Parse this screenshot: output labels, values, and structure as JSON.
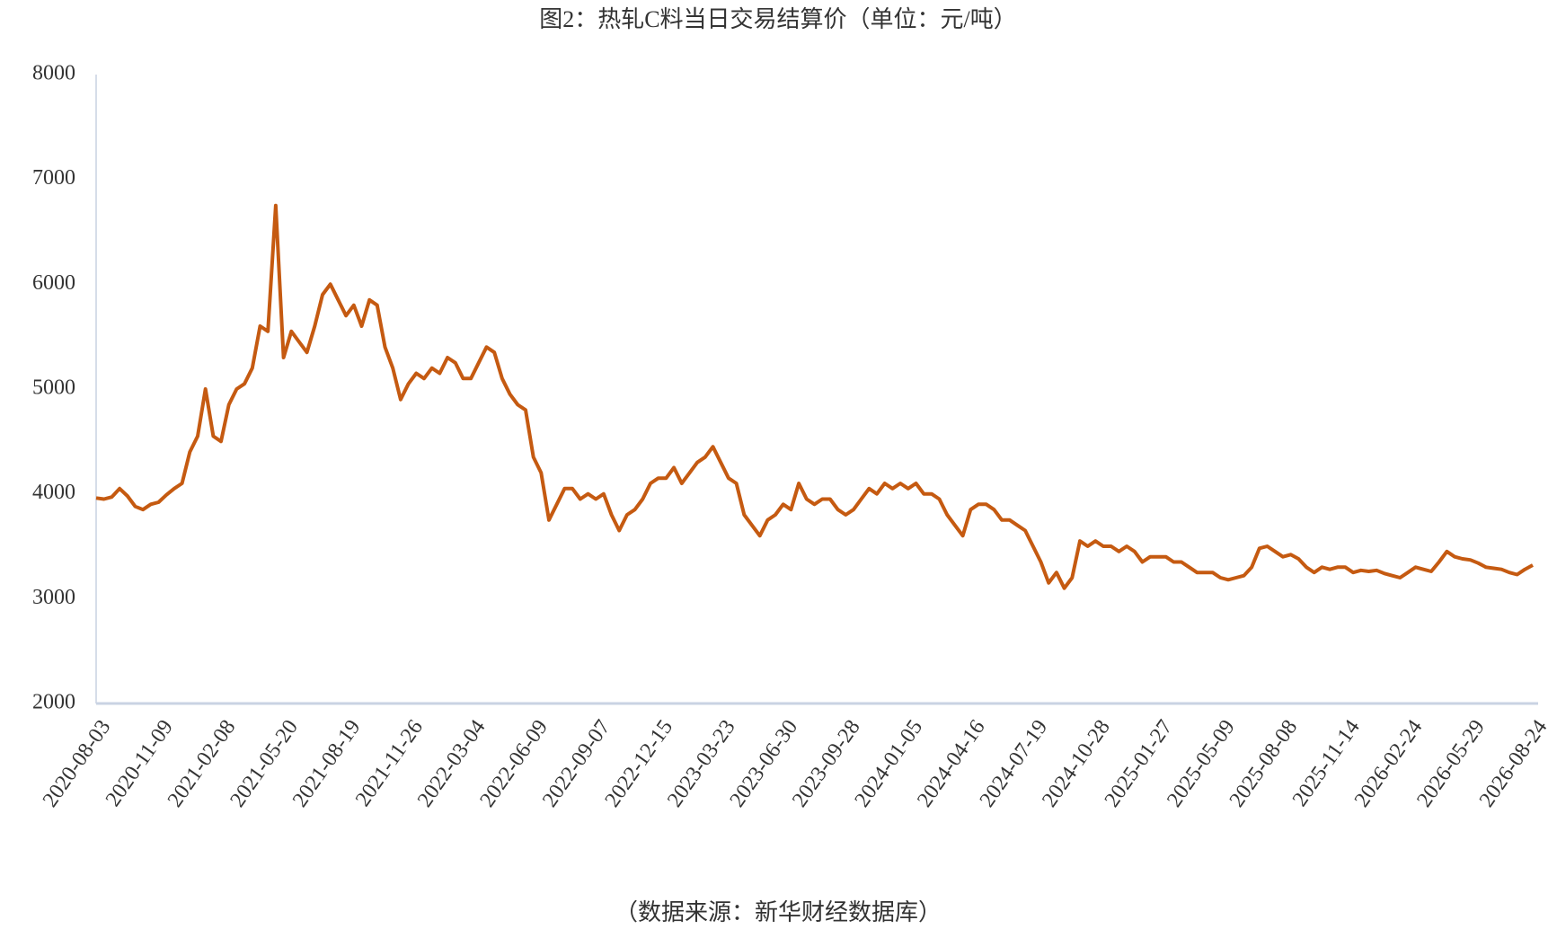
{
  "chart_data": {
    "type": "line",
    "title": "图2：热轧C料当日交易结算价（单位：元/吨）",
    "source": "（数据来源：新华财经数据库）",
    "categories": [
      "2020-08-03",
      null,
      null,
      null,
      null,
      null,
      null,
      null,
      "2020-11-09",
      null,
      null,
      null,
      null,
      null,
      null,
      null,
      "2021-02-08",
      null,
      null,
      null,
      null,
      null,
      null,
      null,
      "2021-05-20",
      null,
      null,
      null,
      null,
      null,
      null,
      null,
      "2021-08-19",
      null,
      null,
      null,
      null,
      null,
      null,
      null,
      "2021-11-26",
      null,
      null,
      null,
      null,
      null,
      null,
      null,
      "2022-03-04",
      null,
      null,
      null,
      null,
      null,
      null,
      null,
      "2022-06-09",
      null,
      null,
      null,
      null,
      null,
      null,
      null,
      "2022-09-07",
      null,
      null,
      null,
      null,
      null,
      null,
      null,
      "2022-12-15",
      null,
      null,
      null,
      null,
      null,
      null,
      null,
      "2023-03-23",
      null,
      null,
      null,
      null,
      null,
      null,
      null,
      "2023-06-30",
      null,
      null,
      null,
      null,
      null,
      null,
      null,
      "2023-09-28",
      null,
      null,
      null,
      null,
      null,
      null,
      null,
      "2024-01-05",
      null,
      null,
      null,
      null,
      null,
      null,
      null,
      "2024-04-16",
      null,
      null,
      null,
      null,
      null,
      null,
      null,
      "2024-07-19",
      null,
      null,
      null,
      null,
      null,
      null,
      null,
      "2024-10-28",
      null,
      null,
      null,
      null,
      null,
      null,
      null,
      "2025-01-27",
      null,
      null,
      null,
      null,
      null,
      null,
      null,
      "2025-05-09",
      null,
      null,
      null,
      null,
      null,
      null,
      null,
      "2025-08-08",
      null,
      null,
      null,
      null,
      null,
      null,
      null,
      "2025-11-14",
      null,
      null,
      null,
      null,
      null,
      null,
      null,
      "2026-02-24",
      null,
      null,
      null,
      null,
      null,
      null,
      null,
      "2026-05-29",
      null,
      null,
      null,
      null,
      null,
      null,
      null,
      "2026-08-24"
    ],
    "series": [
      {
        "color": "#c55a11",
        "values": [
          3960,
          3950,
          3970,
          4050,
          3980,
          3880,
          3850,
          3900,
          3920,
          3990,
          4050,
          4100,
          4400,
          4550,
          5000,
          4550,
          4500,
          4850,
          5000,
          5050,
          5200,
          5600,
          5550,
          6750,
          5300,
          5550,
          5450,
          5350,
          5600,
          5900,
          6000,
          5850,
          5700,
          5800,
          5600,
          5850,
          5800,
          5400,
          5200,
          4900,
          5050,
          5150,
          5100,
          5200,
          5150,
          5300,
          5250,
          5100,
          5100,
          5250,
          5400,
          5350,
          5100,
          4950,
          4850,
          4800,
          4350,
          4200,
          3750,
          3900,
          4050,
          4050,
          3950,
          4000,
          3950,
          4000,
          3800,
          3650,
          3800,
          3850,
          3950,
          4100,
          4150,
          4150,
          4250,
          4100,
          4200,
          4300,
          4350,
          4450,
          4300,
          4150,
          4100,
          3800,
          3700,
          3600,
          3750,
          3800,
          3900,
          3850,
          4100,
          3950,
          3900,
          3950,
          3950,
          3850,
          3800,
          3850,
          3950,
          4050,
          4000,
          4100,
          4050,
          4100,
          4050,
          4100,
          4000,
          4000,
          3950,
          3800,
          3700,
          3600,
          3850,
          3900,
          3900,
          3850,
          3750,
          3750,
          3700,
          3650,
          3500,
          3350,
          3150,
          3250,
          3100,
          3200,
          3550,
          3500,
          3550,
          3500,
          3500,
          3450,
          3500,
          3450,
          3350,
          3400,
          3400,
          3400,
          3350,
          3350,
          3300,
          3250,
          3250,
          3250,
          3200,
          3180,
          3200,
          3220,
          3300,
          3480,
          3500,
          3450,
          3400,
          3420,
          3380,
          3300,
          3250,
          3300,
          3280,
          3300,
          3300,
          3250,
          3270,
          3260,
          3270,
          3240,
          3220,
          3200,
          3250,
          3300,
          3280,
          3260,
          3350,
          3450,
          3400,
          3380,
          3370,
          3340,
          3300,
          3290,
          3280,
          3250,
          3230,
          3280,
          3320
        ]
      }
    ],
    "ylim": [
      2000,
      8000
    ],
    "yticks": [
      2000,
      3000,
      4000,
      5000,
      6000,
      7000,
      8000
    ]
  }
}
